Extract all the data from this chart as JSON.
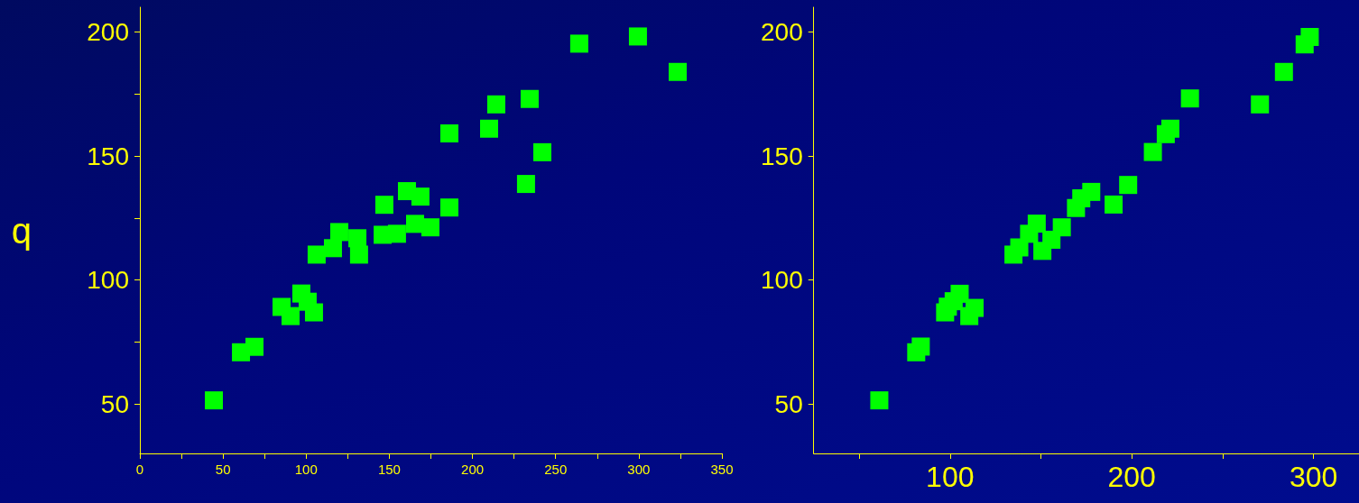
{
  "chart_data": [
    {
      "type": "scatter",
      "ylabel": "q",
      "marker": "square",
      "grid": false,
      "xlim": [
        0,
        350
      ],
      "ylim": [
        30,
        210
      ],
      "xticks": [
        0,
        {
          "value": 25,
          "label": null
        },
        50,
        {
          "value": 75,
          "label": null
        },
        100,
        {
          "value": 125,
          "label": null
        },
        150,
        {
          "value": 175,
          "label": null
        },
        200,
        {
          "value": 225,
          "label": null
        },
        250,
        {
          "value": 275,
          "label": null
        },
        300,
        {
          "value": 325,
          "label": null
        },
        350
      ],
      "yticks": [
        50,
        {
          "value": 75,
          "label": null
        },
        100,
        {
          "value": 125,
          "label": null
        },
        150,
        {
          "value": 175,
          "label": null
        },
        200
      ],
      "series": [
        {
          "color": "#00ff00",
          "x": [
            44.5,
            60.8,
            68.9,
            85.2,
            90.6,
            97.1,
            100.9,
            104.7,
            106.3,
            116.1,
            119.9,
            130.8,
            131.8,
            146,
            154.6,
            165.5,
            174.7,
            147,
            160.6,
            168.7,
            186.1,
            186.1,
            210,
            214.3,
            234.4,
            242,
            232.2,
            264.2,
            299.5,
            323.4
          ],
          "values": [
            51.4,
            70.8,
            73,
            89.1,
            85.4,
            94.5,
            91.2,
            86.9,
            110.2,
            112.8,
            119.3,
            116.8,
            110.2,
            118.2,
            118.6,
            122.6,
            121.2,
            130.3,
            135.8,
            133.6,
            129.2,
            159.1,
            161,
            170.8,
            173,
            151.5,
            138.7,
            195.3,
            198.2,
            183.9
          ]
        }
      ]
    },
    {
      "type": "scatter",
      "marker": "square",
      "grid": false,
      "xlim": [
        25,
        325
      ],
      "ylim": [
        30,
        210
      ],
      "xticks": [
        {
          "value": 50,
          "label": null
        },
        100,
        {
          "value": 150,
          "label": null
        },
        200,
        {
          "value": 250,
          "label": null
        },
        300
      ],
      "yticks": [
        50,
        100,
        150,
        200
      ],
      "series": [
        {
          "color": "#00ff00",
          "x": [
            61.1,
            81.4,
            83.9,
            97.3,
            98.8,
            102,
            105.3,
            110.6,
            113.5,
            134.9,
            138.1,
            143.5,
            147.7,
            150.8,
            155.8,
            161.5,
            169.3,
            172.2,
            177.7,
            190,
            198,
            211.6,
            218.7,
            221.2,
            232,
            270.5,
            283.7,
            295.1,
            297.9
          ],
          "values": [
            51.4,
            70.8,
            73.1,
            86.9,
            89.2,
            91.4,
            94.4,
            85.4,
            88.7,
            110.2,
            113.1,
            118.6,
            122.7,
            111.7,
            116.2,
            121.2,
            129,
            132.9,
            135.5,
            130.4,
            138.3,
            151.6,
            158.8,
            161,
            173.2,
            170.8,
            183.9,
            195,
            198
          ]
        }
      ]
    }
  ]
}
